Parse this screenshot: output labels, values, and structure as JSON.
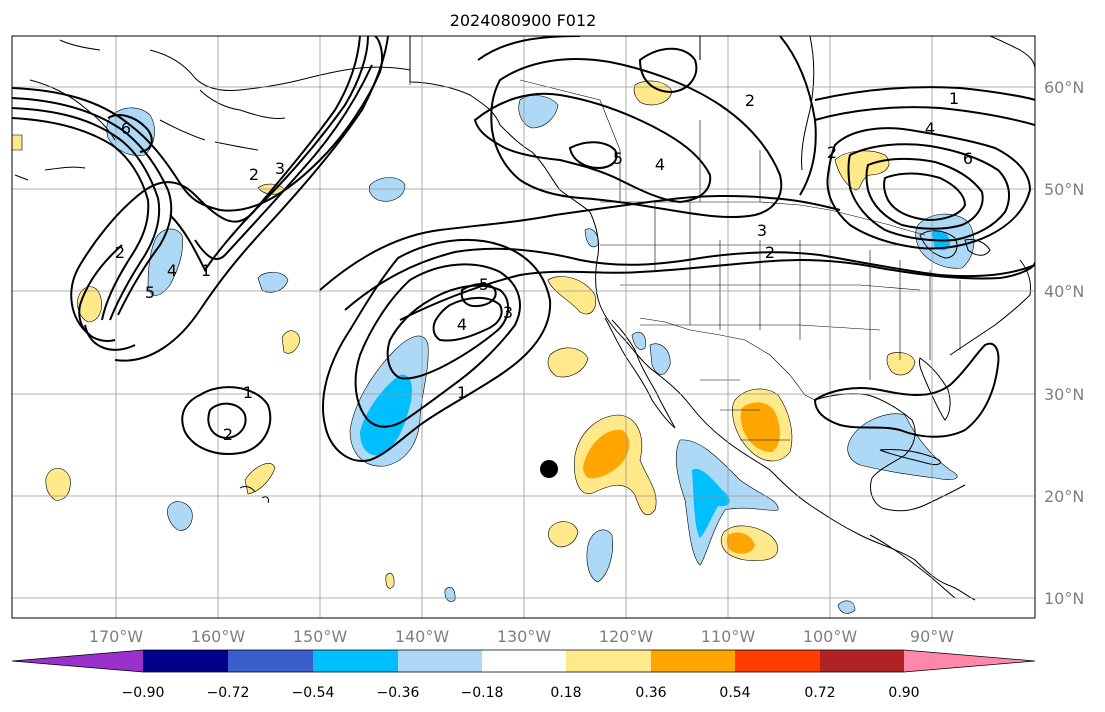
{
  "title": "2024080900 F012",
  "map": {
    "longitude_labels": [
      "170°W",
      "160°W",
      "150°W",
      "140°W",
      "130°W",
      "120°W",
      "110°W",
      "100°W",
      "90°W"
    ],
    "latitude_labels": [
      "60°N",
      "50°N",
      "40°N",
      "30°N",
      "20°N",
      "10°N"
    ],
    "contour_labels": [
      "1",
      "2",
      "3",
      "4",
      "5",
      "6"
    ],
    "land_color": "#ffffff",
    "gridline_color": "#999999",
    "contour_color": "#000000"
  },
  "colorbar": {
    "tick_labels": [
      "−0.90",
      "−0.72",
      "−0.54",
      "−0.36",
      "−0.18",
      "0.18",
      "0.36",
      "0.54",
      "0.72",
      "0.90"
    ],
    "colors": [
      "#9932cc",
      "#00008b",
      "#3a5fcd",
      "#00bfff",
      "#add8f6",
      "#ffffff",
      "#ffe98a",
      "#ffa500",
      "#ff3d00",
      "#b22222",
      "#ff88aa"
    ]
  }
}
